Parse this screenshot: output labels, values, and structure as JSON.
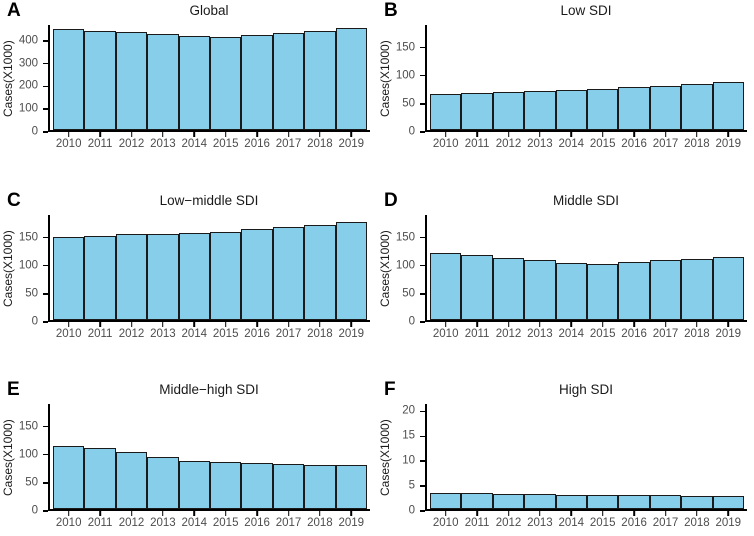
{
  "style": {
    "background": "#ffffff",
    "bar_fill": "#87CEEB",
    "bar_border": "#1a1a1a",
    "axis_color": "#000000",
    "tick_label_color": "#4d4d4d",
    "title_color": "#1a1a1a",
    "letter_color": "#000000"
  },
  "chart_data": [
    {
      "type": "bar",
      "panel_label": "A",
      "title": "Global",
      "ylabel": "Cases(X1000)",
      "xlabel": "",
      "categories": [
        "2010",
        "2011",
        "2012",
        "2013",
        "2014",
        "2015",
        "2016",
        "2017",
        "2018",
        "2019"
      ],
      "values": [
        443,
        437,
        429,
        420,
        413,
        410,
        416,
        424,
        434,
        446
      ],
      "yticks": [
        0,
        100,
        200,
        300,
        400
      ],
      "ylim": [
        0,
        470
      ],
      "grid": false,
      "legend": "none"
    },
    {
      "type": "bar",
      "panel_label": "B",
      "title": "Low SDI",
      "ylabel": "Cases(X1000)",
      "xlabel": "",
      "categories": [
        "2010",
        "2011",
        "2012",
        "2013",
        "2014",
        "2015",
        "2016",
        "2017",
        "2018",
        "2019"
      ],
      "values": [
        64,
        66,
        68,
        70,
        71,
        73,
        76,
        79,
        82,
        85
      ],
      "yticks": [
        0,
        50,
        100,
        150
      ],
      "ylim": [
        0,
        190
      ],
      "grid": false,
      "legend": "none"
    },
    {
      "type": "bar",
      "panel_label": "C",
      "title": "Low−middle SDI",
      "ylabel": "Cases(X1000)",
      "xlabel": "",
      "categories": [
        "2010",
        "2011",
        "2012",
        "2013",
        "2014",
        "2015",
        "2016",
        "2017",
        "2018",
        "2019"
      ],
      "values": [
        148,
        150,
        152,
        153,
        155,
        157,
        161,
        165,
        169,
        174
      ],
      "yticks": [
        0,
        50,
        100,
        150
      ],
      "ylim": [
        0,
        190
      ],
      "grid": false,
      "legend": "none"
    },
    {
      "type": "bar",
      "panel_label": "D",
      "title": "Middle SDI",
      "ylabel": "Cases(X1000)",
      "xlabel": "",
      "categories": [
        "2010",
        "2011",
        "2012",
        "2013",
        "2014",
        "2015",
        "2016",
        "2017",
        "2018",
        "2019"
      ],
      "values": [
        119,
        116,
        111,
        106,
        102,
        100,
        103,
        106,
        109,
        112
      ],
      "yticks": [
        0,
        50,
        100,
        150
      ],
      "ylim": [
        0,
        190
      ],
      "grid": false,
      "legend": "none"
    },
    {
      "type": "bar",
      "panel_label": "E",
      "title": "Middle−high SDI",
      "ylabel": "Cases(X1000)",
      "xlabel": "",
      "categories": [
        "2010",
        "2011",
        "2012",
        "2013",
        "2014",
        "2015",
        "2016",
        "2017",
        "2018",
        "2019"
      ],
      "values": [
        112,
        108,
        101,
        93,
        86,
        83,
        81,
        80,
        79,
        79
      ],
      "yticks": [
        0,
        50,
        100,
        150
      ],
      "ylim": [
        0,
        190
      ],
      "grid": false,
      "legend": "none"
    },
    {
      "type": "bar",
      "panel_label": "F",
      "title": "High SDI",
      "ylabel": "Cases(X1000)",
      "xlabel": "",
      "categories": [
        "2010",
        "2011",
        "2012",
        "2013",
        "2014",
        "2015",
        "2016",
        "2017",
        "2018",
        "2019"
      ],
      "values": [
        3.3,
        3.2,
        3.1,
        3.0,
        2.9,
        2.9,
        2.8,
        2.8,
        2.7,
        2.7
      ],
      "yticks": [
        0,
        5,
        10,
        15,
        20
      ],
      "ylim": [
        0,
        21.5
      ],
      "grid": false,
      "legend": "none"
    }
  ]
}
